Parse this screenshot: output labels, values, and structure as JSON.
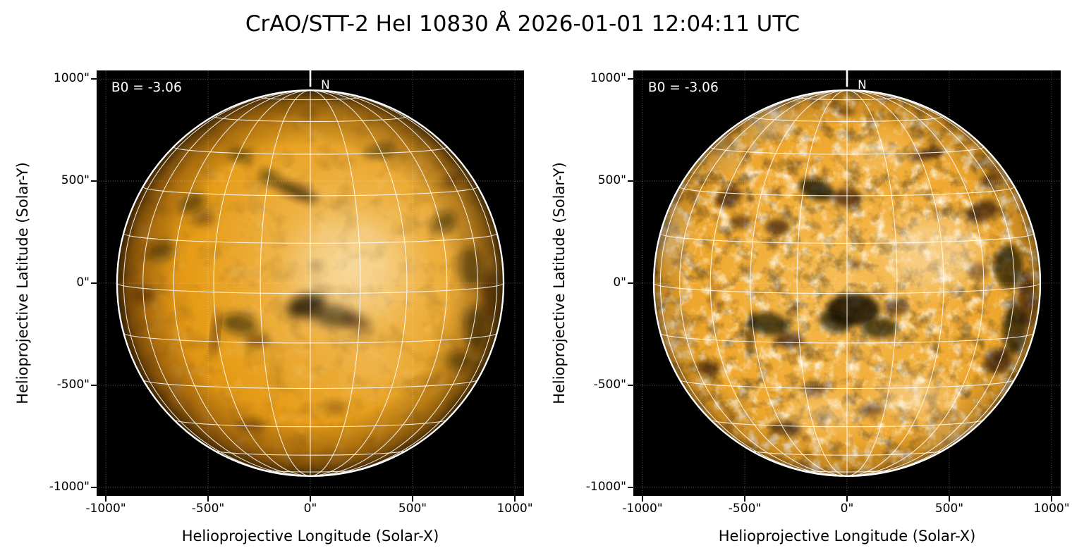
{
  "title": "CrAO/STT-2 HeI 10830 Å 2026-01-01 12:04:11 UTC",
  "colors": {
    "figure_background": "#ffffff",
    "panel_background": "#000000",
    "disk_orange": "#e69c17",
    "grid_white": "#ffffff",
    "feature_dark": "#1a0e00",
    "text": "#000000"
  },
  "panels": [
    {
      "b0_label": "B0 = -3.06",
      "north_label": "N",
      "xlabel": "Helioprojective Longitude (Solar-X)",
      "ylabel": "Helioprojective Latitude (Solar-Y)",
      "xtick_labels": [
        "-1000\"",
        "-500\"",
        "0\"",
        "500\"",
        "1000\""
      ],
      "ytick_labels": [
        "-1000\"",
        "-500\"",
        "0\"",
        "500\"",
        "1000\""
      ]
    },
    {
      "b0_label": "B0 = -3.06",
      "north_label": "N",
      "xlabel": "Helioprojective Longitude (Solar-X)",
      "ylabel": "Helioprojective Latitude (Solar-Y)",
      "xtick_labels": [
        "-1000\"",
        "-500\"",
        "0\"",
        "500\"",
        "1000\""
      ],
      "ytick_labels": [
        "-1000\"",
        "-500\"",
        "0\"",
        "500\"",
        "1000\""
      ]
    }
  ],
  "chart_data": {
    "type": "heatmap",
    "title": "CrAO/STT-2 HeI 10830 Å 2026-01-01 12:04:11 UTC",
    "instrument": "CrAO/STT-2",
    "wavelength": "HeI 10830 Å",
    "datetime_utc": "2026-01-01 12:04:11",
    "panels": [
      {
        "description": "Full solar disk, smoothed HeI 10830 Å intensity image with heliographic grid overlay",
        "xlabel": "Helioprojective Longitude (Solar-X)",
        "ylabel": "Helioprojective Latitude (Solar-Y)",
        "xlim_arcsec": [
          -1045,
          1045
        ],
        "ylim_arcsec": [
          -1042,
          1042
        ],
        "xticks_arcsec": [
          -1000,
          -500,
          0,
          500,
          1000
        ],
        "yticks_arcsec": [
          -1000,
          -500,
          0,
          500,
          1000
        ],
        "b0_deg": -3.06,
        "north_marker": "N",
        "solar_limb_radius_arcsec": 945,
        "heliographic_grid_spacing_deg": 15,
        "figure_grid": "dotted lines every 500 arcsec",
        "background": "black",
        "palette": "orange with dark absorption features"
      },
      {
        "description": "Full solar disk, contrast-enhanced HeI 10830 Å image showing bright network and dark absorption regions, heliographic grid overlay",
        "xlabel": "Helioprojective Longitude (Solar-X)",
        "ylabel": "Helioprojective Latitude (Solar-Y)",
        "xlim_arcsec": [
          -1045,
          1045
        ],
        "ylim_arcsec": [
          -1042,
          1042
        ],
        "xticks_arcsec": [
          -1000,
          -500,
          0,
          500,
          1000
        ],
        "yticks_arcsec": [
          -1000,
          -500,
          0,
          500,
          1000
        ],
        "b0_deg": -3.06,
        "north_marker": "N",
        "solar_limb_radius_arcsec": 945,
        "heliographic_grid_spacing_deg": 15,
        "figure_grid": "dotted lines every 500 arcsec",
        "background": "black",
        "palette": "orange/white mottled with dark absorption features"
      }
    ]
  }
}
